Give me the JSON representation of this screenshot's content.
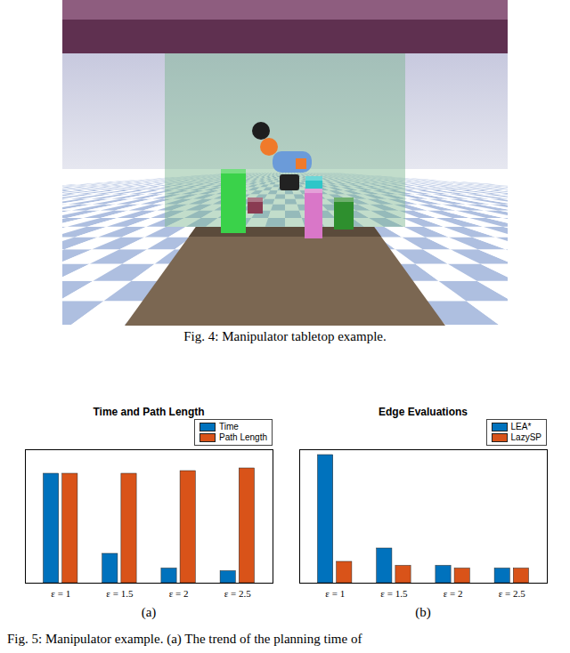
{
  "figure4": {
    "caption": "Fig. 4: Manipulator tabletop example."
  },
  "chart_data": [
    {
      "type": "bar",
      "title": "Time and Path Length",
      "categories": [
        "ε = 1",
        "ε = 1.5",
        "ε = 2",
        "ε = 2.5"
      ],
      "series": [
        {
          "name": "Time",
          "color": "#0072bd",
          "values": [
            0.82,
            0.22,
            0.11,
            0.09
          ]
        },
        {
          "name": "Path Length",
          "color": "#d95319",
          "values": [
            0.82,
            0.82,
            0.84,
            0.86
          ]
        }
      ],
      "ylim": [
        0,
        1
      ],
      "yticks": [],
      "tick_labels": "x",
      "legend": "northeast"
    },
    {
      "type": "bar",
      "title": "Edge Evaluations",
      "categories": [
        "ε = 1",
        "ε = 1.5",
        "ε = 2",
        "ε = 2.5"
      ],
      "series": [
        {
          "name": "LEA*",
          "color": "#0072bd",
          "values": [
            0.96,
            0.26,
            0.13,
            0.11
          ]
        },
        {
          "name": "LazySP",
          "color": "#d95319",
          "values": [
            0.16,
            0.13,
            0.11,
            0.11
          ]
        }
      ],
      "ylim": [
        0,
        1
      ],
      "yticks": [],
      "tick_labels": "x",
      "legend": "northeast"
    }
  ],
  "figure5": {
    "panel_labels": [
      "(a)",
      "(b)"
    ],
    "caption": "Fig. 5: Manipulator example. (a) The trend of the planning time of"
  }
}
